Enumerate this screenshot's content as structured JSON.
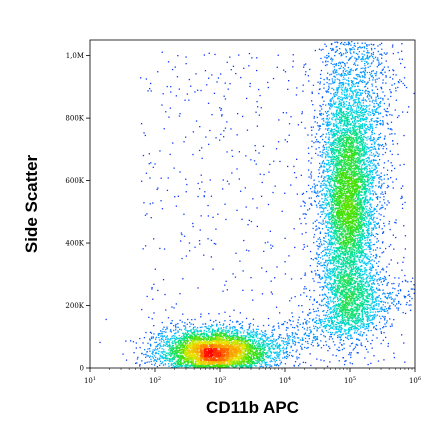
{
  "chart_data": {
    "type": "scatter",
    "xlabel": "CD11b APC",
    "ylabel": "Side Scatter",
    "x_scale": "log",
    "xlim": [
      10,
      1000000
    ],
    "ylim": [
      0,
      1050000
    ],
    "x_ticks": [
      {
        "value": 10,
        "base": "10",
        "exp": "1"
      },
      {
        "value": 100,
        "base": "10",
        "exp": "2"
      },
      {
        "value": 1000,
        "base": "10",
        "exp": "3"
      },
      {
        "value": 10000,
        "base": "10",
        "exp": "4"
      },
      {
        "value": 100000,
        "base": "10",
        "exp": "5"
      },
      {
        "value": 1000000,
        "base": "10",
        "exp": "6"
      }
    ],
    "y_ticks": [
      {
        "value": 0,
        "label": "0"
      },
      {
        "value": 200000,
        "label": "200K"
      },
      {
        "value": 400000,
        "label": "400K"
      },
      {
        "value": 600000,
        "label": "600K"
      },
      {
        "value": 800000,
        "label": "800K"
      },
      {
        "value": 1000000,
        "label": "1,0M"
      }
    ],
    "grid": false,
    "color_scale": "density (blue-cyan-green-yellow-orange-red)",
    "populations": [
      {
        "center_x": 800,
        "center_y": 50000,
        "count": 4500,
        "density": "highest"
      },
      {
        "center_x": 8000,
        "center_y": 80000,
        "count": 1200,
        "density": "low"
      },
      {
        "center_x": 90000,
        "center_y": 550000,
        "count": 5000,
        "density": "high"
      },
      {
        "center_x": 100000,
        "center_y": 220000,
        "count": 1200,
        "density": "medium"
      },
      {
        "center_x": 120000,
        "center_y": 900000,
        "count": 1200,
        "density": "low"
      }
    ]
  }
}
